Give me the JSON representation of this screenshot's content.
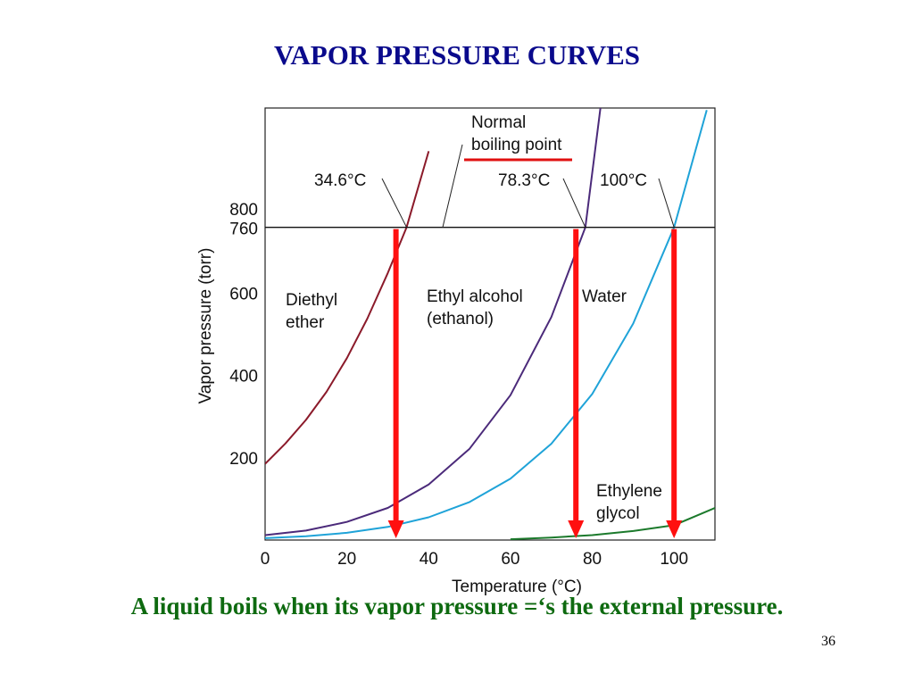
{
  "slide": {
    "title": "VAPOR PRESSURE CURVES",
    "caption": "A liquid boils when its vapor pressure =‘s the external pressure.",
    "page_number": "36"
  },
  "chart_data": {
    "type": "line",
    "xlabel": "Temperature (°C)",
    "ylabel": "Vapor pressure (torr)",
    "xlim": [
      0,
      110
    ],
    "ylim": [
      0,
      1050
    ],
    "xticks": [
      0,
      20,
      40,
      60,
      80,
      100
    ],
    "xtick_labels": [
      "0",
      "20",
      "40",
      "60",
      "80",
      "100"
    ],
    "yticks": [
      200,
      400,
      600,
      760,
      800
    ],
    "ytick_labels": [
      "200",
      "400",
      "600",
      "760",
      "800"
    ],
    "grid": true,
    "reference_line": {
      "y": 760
    },
    "series": [
      {
        "name": "Diethyl ether",
        "label_lines": [
          "Diethyl",
          "ether"
        ],
        "color": "#8b1a2a",
        "boiling_point": 34.6,
        "boiling_label": "34.6°C",
        "x": [
          0,
          5,
          10,
          15,
          20,
          25,
          30,
          34.6,
          40
        ],
        "y": [
          185,
          235,
          292,
          360,
          442,
          538,
          649,
          760,
          945
        ]
      },
      {
        "name": "Ethyl alcohol (ethanol)",
        "label_lines": [
          "Ethyl alcohol",
          "(ethanol)"
        ],
        "color": "#4b2a7a",
        "boiling_point": 78.3,
        "boiling_label": "78.3°C",
        "x": [
          0,
          10,
          20,
          30,
          40,
          50,
          60,
          70,
          78.3,
          82
        ],
        "y": [
          12,
          23,
          44,
          78,
          135,
          222,
          352,
          542,
          760,
          1050
        ]
      },
      {
        "name": "Water",
        "label_lines": [
          "Water"
        ],
        "color": "#1fa3d8",
        "boiling_point": 100,
        "boiling_label": "100°C",
        "x": [
          0,
          10,
          20,
          30,
          40,
          50,
          60,
          70,
          80,
          90,
          100,
          108
        ],
        "y": [
          4.6,
          9.2,
          17.5,
          31.8,
          55.3,
          92.5,
          149,
          234,
          355,
          526,
          760,
          1045
        ]
      },
      {
        "name": "Ethylene glycol",
        "label_lines": [
          "Ethylene",
          "glycol"
        ],
        "color": "#1c7a2c",
        "x": [
          60,
          70,
          80,
          90,
          100,
          110
        ],
        "y": [
          2,
          6,
          12,
          22,
          36,
          78
        ]
      }
    ],
    "annotations": {
      "normal_boiling_point_lines": [
        "Normal",
        "boiling point"
      ],
      "legend_marker_color": "#e01010",
      "arrow_color": "#ff1010",
      "arrows_at_x": [
        32,
        76,
        100
      ]
    }
  }
}
